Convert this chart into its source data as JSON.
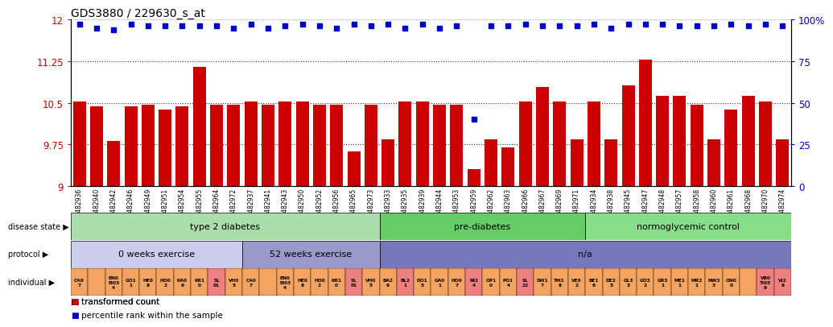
{
  "title": "GDS3880 / 229630_s_at",
  "bar_color": "#cc0000",
  "dot_color": "#0000cc",
  "ylim_left": [
    9,
    12
  ],
  "yticks_left": [
    9,
    9.75,
    10.5,
    11.25,
    12
  ],
  "yticks_right": [
    0,
    25,
    50,
    75,
    100
  ],
  "dotted_lines": [
    9.75,
    10.5,
    11.25
  ],
  "samples": [
    "GSM482936",
    "GSM482940",
    "GSM482942",
    "GSM482946",
    "GSM482949",
    "GSM482951",
    "GSM482954",
    "GSM482955",
    "GSM482964",
    "GSM482972",
    "GSM482937",
    "GSM482941",
    "GSM482943",
    "GSM482950",
    "GSM482952",
    "GSM482956",
    "GSM482965",
    "GSM482973",
    "GSM482933",
    "GSM482935",
    "GSM482939",
    "GSM482944",
    "GSM482953",
    "GSM482959",
    "GSM482962",
    "GSM482963",
    "GSM482966",
    "GSM482967",
    "GSM482969",
    "GSM482971",
    "GSM482934",
    "GSM482938",
    "GSM482945",
    "GSM482947",
    "GSM482948",
    "GSM482957",
    "GSM482958",
    "GSM482960",
    "GSM482961",
    "GSM482968",
    "GSM482970",
    "GSM482974"
  ],
  "bar_values": [
    10.52,
    10.43,
    9.82,
    10.43,
    10.47,
    10.38,
    10.43,
    11.15,
    10.47,
    10.47,
    10.52,
    10.47,
    10.52,
    10.52,
    10.47,
    10.47,
    9.62,
    10.47,
    9.85,
    10.52,
    10.52,
    10.47,
    10.47,
    9.3,
    9.85,
    9.7,
    10.52,
    10.78,
    10.52,
    9.85,
    10.52,
    9.85,
    10.82,
    11.28,
    10.62,
    10.62,
    10.47,
    9.85,
    10.38,
    10.62,
    10.52,
    9.85
  ],
  "dot_values_pct": [
    97,
    95,
    94,
    97,
    96,
    96,
    96,
    96,
    96,
    95,
    97,
    95,
    96,
    97,
    96,
    95,
    97,
    96,
    97,
    95,
    97,
    95,
    96,
    40,
    96,
    96,
    97,
    96,
    96,
    96,
    97,
    95,
    97,
    97,
    97,
    96,
    96,
    96,
    97,
    96,
    97,
    96
  ],
  "disease_state_sections": [
    {
      "label": "type 2 diabetes",
      "start": 0,
      "end": 18,
      "color": "#aaddaa"
    },
    {
      "label": "pre-diabetes",
      "start": 18,
      "end": 30,
      "color": "#66cc66"
    },
    {
      "label": "normoglycemic control",
      "start": 30,
      "end": 42,
      "color": "#88dd88"
    }
  ],
  "protocol_sections": [
    {
      "label": "0 weeks exercise",
      "start": 0,
      "end": 10,
      "color": "#ccccee"
    },
    {
      "label": "52 weeks exercise",
      "start": 10,
      "end": 18,
      "color": "#9999cc"
    },
    {
      "label": "n/a",
      "start": 18,
      "end": 42,
      "color": "#7777bb"
    }
  ],
  "background_color": "#ffffff",
  "axis_label_color_left": "#cc0000",
  "axis_label_color_right": "#0000cc",
  "xtick_bg_color": "#dddddd"
}
